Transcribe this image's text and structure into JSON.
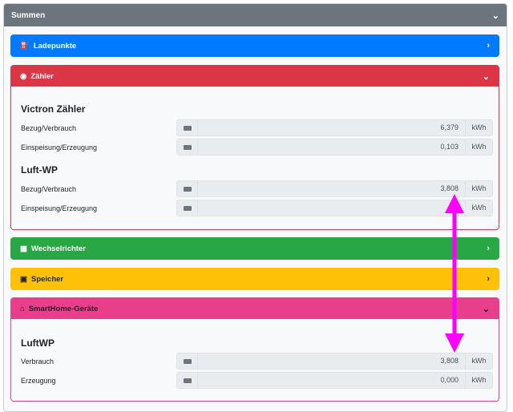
{
  "title": "Summen",
  "sections": {
    "ladepunkte": {
      "label": "Ladepunkte",
      "color": "#007bff"
    },
    "zaehler": {
      "label": "Zähler",
      "color": "#dc3545",
      "groups": [
        {
          "name": "Victron Zähler",
          "rows": [
            {
              "label": "Bezug/Verbrauch",
              "value": "6,379",
              "unit": "kWh"
            },
            {
              "label": "Einspeisung/Erzeugung",
              "value": "0,103",
              "unit": "kWh"
            }
          ]
        },
        {
          "name": "Luft-WP",
          "rows": [
            {
              "label": "Bezug/Verbrauch",
              "value": "3,808",
              "unit": "kWh"
            },
            {
              "label": "Einspeisung/Erzeugung",
              "value": "0",
              "unit": "kWh"
            }
          ]
        }
      ]
    },
    "wechselrichter": {
      "label": "Wechselrichter",
      "color": "#28a745"
    },
    "speicher": {
      "label": "Speicher",
      "color": "#ffc107"
    },
    "smarthome": {
      "label": "SmartHome-Geräte",
      "color": "#e83e8c",
      "groups": [
        {
          "name": "LuftWP",
          "rows": [
            {
              "label": "Verbrauch",
              "value": "3,808",
              "unit": "kWh"
            },
            {
              "label": "Erzeugung",
              "value": "0,000",
              "unit": "kWh"
            }
          ]
        }
      ]
    }
  },
  "annotation": {
    "color": "#ff00ff",
    "icon": "double-arrow-vertical"
  }
}
